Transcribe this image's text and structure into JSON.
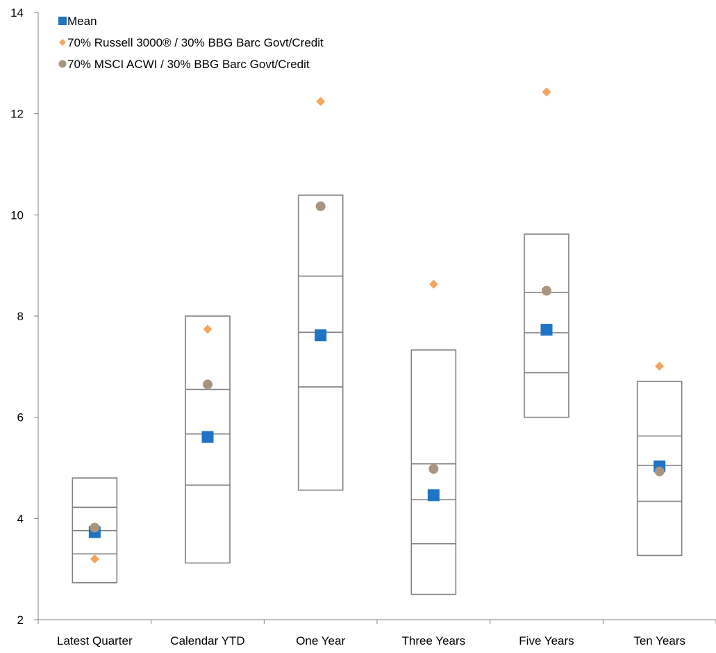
{
  "chart_data": {
    "type": "box",
    "categories": [
      "Latest Quarter",
      "Calendar YTD",
      "One Year",
      "Three Years",
      "Five Years",
      "Ten Years"
    ],
    "ylim": [
      2,
      14
    ],
    "yticks": [
      "2",
      "4",
      "6",
      "8",
      "10",
      "12",
      "14"
    ],
    "xlabel": "",
    "ylabel": "",
    "grid": false,
    "legend_position": "top-left",
    "boxes": [
      {
        "category": "Latest Quarter",
        "top": 4.8,
        "q3": 4.22,
        "median": 3.76,
        "q1": 3.3,
        "bottom": 2.73
      },
      {
        "category": "Calendar YTD",
        "top": 8.0,
        "q3": 6.55,
        "median": 5.67,
        "q1": 4.66,
        "bottom": 3.12
      },
      {
        "category": "One Year",
        "top": 10.39,
        "q3": 8.79,
        "median": 7.68,
        "q1": 6.6,
        "bottom": 4.56
      },
      {
        "category": "Three Years",
        "top": 7.33,
        "q3": 5.08,
        "median": 4.37,
        "q1": 3.5,
        "bottom": 2.5
      },
      {
        "category": "Five Years",
        "top": 9.62,
        "q3": 8.47,
        "median": 7.67,
        "q1": 6.88,
        "bottom": 6.0
      },
      {
        "category": "Ten Years",
        "top": 6.71,
        "q3": 5.63,
        "median": 5.05,
        "q1": 4.34,
        "bottom": 3.27
      }
    ],
    "series": [
      {
        "name": "Mean",
        "marker": "square",
        "color": "#1f74c3",
        "values": [
          3.73,
          5.61,
          7.62,
          4.46,
          7.73,
          5.03
        ]
      },
      {
        "name": "70% Russell 3000® / 30% BBG Barc Govt/Credit",
        "marker": "diamond",
        "color": "#f5a55c",
        "values": [
          3.2,
          7.74,
          12.24,
          8.63,
          12.43,
          7.01
        ]
      },
      {
        "name": "70% MSCI ACWI / 30% BBG Barc Govt/Credit",
        "marker": "circle",
        "color": "#a89580",
        "values": [
          3.82,
          6.65,
          10.17,
          4.98,
          8.5,
          4.93
        ]
      }
    ]
  }
}
